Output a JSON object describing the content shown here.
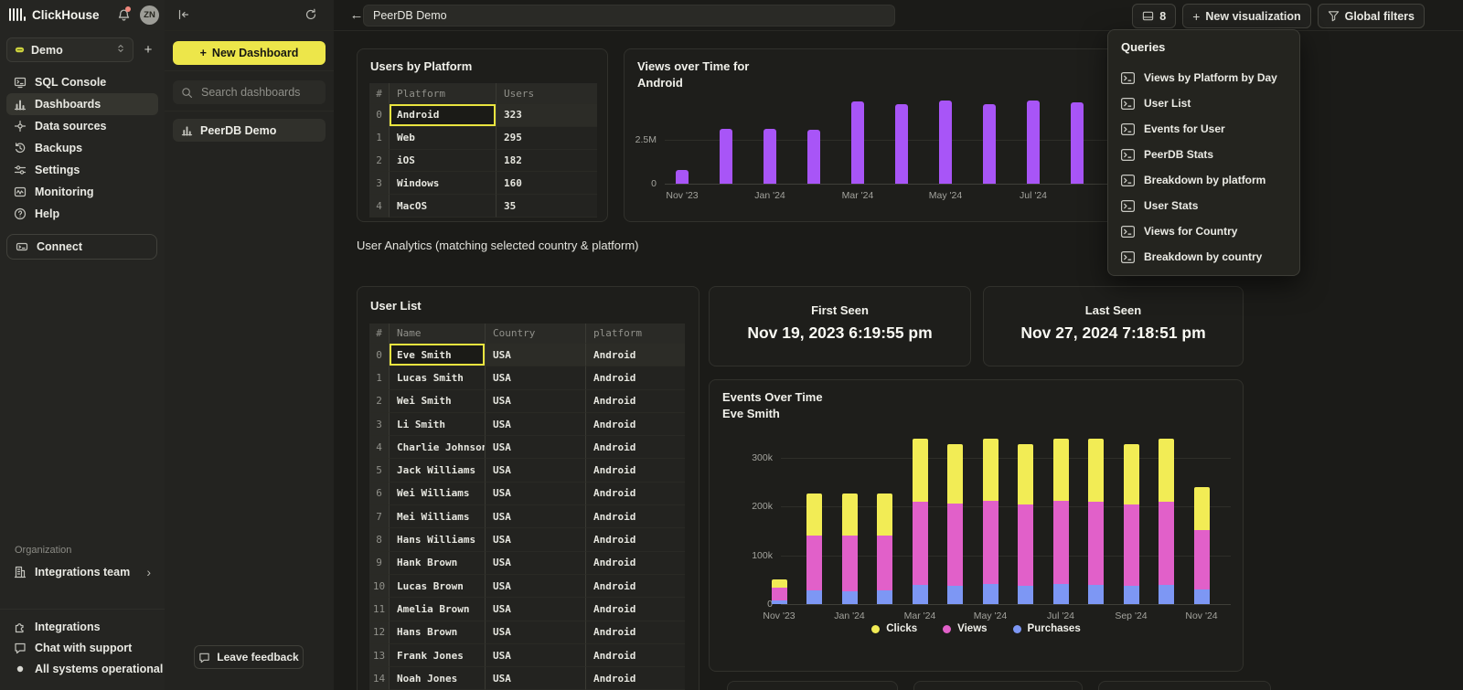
{
  "sidebar": {
    "brand": "ClickHouse",
    "avatar_initials": "ZN",
    "org_select_value": "Demo",
    "add_service_label": "+",
    "nav": [
      {
        "label": "SQL Console",
        "icon": "sql-console"
      },
      {
        "label": "Dashboards",
        "icon": "dashboards",
        "active": true
      },
      {
        "label": "Data sources",
        "icon": "data-sources"
      },
      {
        "label": "Backups",
        "icon": "backups"
      },
      {
        "label": "Settings",
        "icon": "settings"
      },
      {
        "label": "Monitoring",
        "icon": "monitoring"
      },
      {
        "label": "Help",
        "icon": "help"
      }
    ],
    "connect_label": "Connect",
    "organization_label": "Organization",
    "team": {
      "label": "Integrations team",
      "icon": "building"
    },
    "footer": [
      {
        "label": "Integrations",
        "icon": "integrations"
      },
      {
        "label": "Chat with support",
        "icon": "chat"
      },
      {
        "label": "All systems operational",
        "icon": "status-dot",
        "dot_color": "#d7d7d1"
      }
    ]
  },
  "dashboards_panel": {
    "new_dashboard_label": "New Dashboard",
    "search_placeholder": "Search dashboards",
    "items": [
      {
        "label": "PeerDB Demo",
        "icon": "dashboards"
      }
    ],
    "leave_feedback_label": "Leave feedback"
  },
  "toolbar": {
    "title_value": "PeerDB Demo",
    "query_count": "8",
    "new_visualization_label": "New visualization",
    "global_filters_label": "Global filters"
  },
  "queries_panel": {
    "title": "Queries",
    "items": [
      "Views by Platform by Day",
      "User List",
      "Events for User",
      "PeerDB Stats",
      "Breakdown by platform",
      "User Stats",
      "Views for Country",
      "Breakdown by country"
    ]
  },
  "users_by_platform": {
    "title": "Users by Platform",
    "columns": [
      "#",
      "Platform",
      "Users"
    ],
    "rows": [
      [
        "0",
        "Android",
        "323"
      ],
      [
        "1",
        "Web",
        "295"
      ],
      [
        "2",
        "iOS",
        "182"
      ],
      [
        "3",
        "Windows",
        "160"
      ],
      [
        "4",
        "MacOS",
        "35"
      ]
    ],
    "selected_cell": {
      "row": 0,
      "col": 1
    }
  },
  "section_label": "User Analytics (matching selected country & platform)",
  "user_list": {
    "title": "User List",
    "columns": [
      "#",
      "Name",
      "Country",
      "platform"
    ],
    "rows": [
      [
        "0",
        "Eve Smith",
        "USA",
        "Android"
      ],
      [
        "1",
        "Lucas Smith",
        "USA",
        "Android"
      ],
      [
        "2",
        "Wei Smith",
        "USA",
        "Android"
      ],
      [
        "3",
        "Li Smith",
        "USA",
        "Android"
      ],
      [
        "4",
        "Charlie Johnson",
        "USA",
        "Android"
      ],
      [
        "5",
        "Jack Williams",
        "USA",
        "Android"
      ],
      [
        "6",
        "Wei Williams",
        "USA",
        "Android"
      ],
      [
        "7",
        "Mei Williams",
        "USA",
        "Android"
      ],
      [
        "8",
        "Hans Williams",
        "USA",
        "Android"
      ],
      [
        "9",
        "Hank Brown",
        "USA",
        "Android"
      ],
      [
        "10",
        "Lucas Brown",
        "USA",
        "Android"
      ],
      [
        "11",
        "Amelia Brown",
        "USA",
        "Android"
      ],
      [
        "12",
        "Hans Brown",
        "USA",
        "Android"
      ],
      [
        "13",
        "Frank Jones",
        "USA",
        "Android"
      ],
      [
        "14",
        "Noah Jones",
        "USA",
        "Android"
      ]
    ],
    "selected_cell": {
      "row": 0,
      "col": 1
    }
  },
  "first_seen": {
    "title": "First Seen",
    "value": "Nov 19, 2023 6:19:55 pm"
  },
  "last_seen": {
    "title": "Last Seen",
    "value": "Nov 27, 2024 7:18:51 pm"
  },
  "chart_data": [
    {
      "type": "bar",
      "title": "Views over Time for Android",
      "title_line1": "Views over Time for",
      "title_line2": "Android",
      "x": [
        "Nov '23",
        "Dec '23",
        "Jan '24",
        "Feb '24",
        "Mar '24",
        "Apr '24",
        "May '24",
        "Jun '24",
        "Jul '24",
        "Aug '24"
      ],
      "x_labels": [
        "Nov '23",
        "",
        "Jan '24",
        "",
        "Mar '24",
        "",
        "May '24",
        "",
        "Jul '24",
        ""
      ],
      "values": [
        0.75,
        3.1,
        3.1,
        3.05,
        4.65,
        4.5,
        4.7,
        4.5,
        4.7,
        4.6
      ],
      "unit": "M views",
      "ylim": [
        0,
        5
      ],
      "yticks": [
        {
          "v": 0,
          "label": "0"
        },
        {
          "v": 2.5,
          "label": "2.5M"
        }
      ],
      "bar_color": "#a855f7",
      "grid": true,
      "legend_position": "none"
    },
    {
      "type": "stacked-bar",
      "title": "Events Over Time",
      "subtitle": "Eve Smith",
      "x": [
        "Nov '23",
        "Dec '23",
        "Jan '24",
        "Feb '24",
        "Mar '24",
        "Apr '24",
        "May '24",
        "Jun '24",
        "Jul '24",
        "Aug '24",
        "Sep '24",
        "Oct '24",
        "Nov '24"
      ],
      "x_labels": [
        "Nov '23",
        "",
        "Jan '24",
        "",
        "Mar '24",
        "",
        "May '24",
        "",
        "Jul '24",
        "",
        "Sep '24",
        "",
        "Nov '24"
      ],
      "series": [
        {
          "name": "Purchases",
          "color": "#7d97f4",
          "values": [
            8,
            28,
            27,
            28,
            39,
            37,
            41,
            37,
            41,
            39,
            37,
            40,
            30
          ]
        },
        {
          "name": "Views",
          "color": "#e160c9",
          "values": [
            26,
            112,
            113,
            112,
            171,
            169,
            170,
            168,
            170,
            171,
            168,
            170,
            121
          ]
        },
        {
          "name": "Clicks",
          "color": "#f2ec55",
          "values": [
            16,
            87,
            87,
            87,
            129,
            122,
            129,
            123,
            129,
            130,
            123,
            130,
            89
          ]
        }
      ],
      "unit": "k events",
      "ylim": [
        0,
        360
      ],
      "yticks": [
        {
          "v": 0,
          "label": "0"
        },
        {
          "v": 100,
          "label": "100k"
        },
        {
          "v": 200,
          "label": "200k"
        },
        {
          "v": 300,
          "label": "300k"
        }
      ],
      "grid": true,
      "legend_position": "bottom",
      "legend": [
        {
          "label": "Clicks",
          "color": "#f2ec55"
        },
        {
          "label": "Views",
          "color": "#e160c9"
        },
        {
          "label": "Purchases",
          "color": "#7d97f4"
        }
      ]
    }
  ],
  "colors": {
    "accent_yellow": "#ede64a",
    "selection_yellow": "#e9e43f",
    "purple": "#a855f7",
    "magenta": "#e160c9",
    "blue": "#7d97f4",
    "series_yellow": "#f2ec55",
    "notification_dot": "#f0887d"
  }
}
